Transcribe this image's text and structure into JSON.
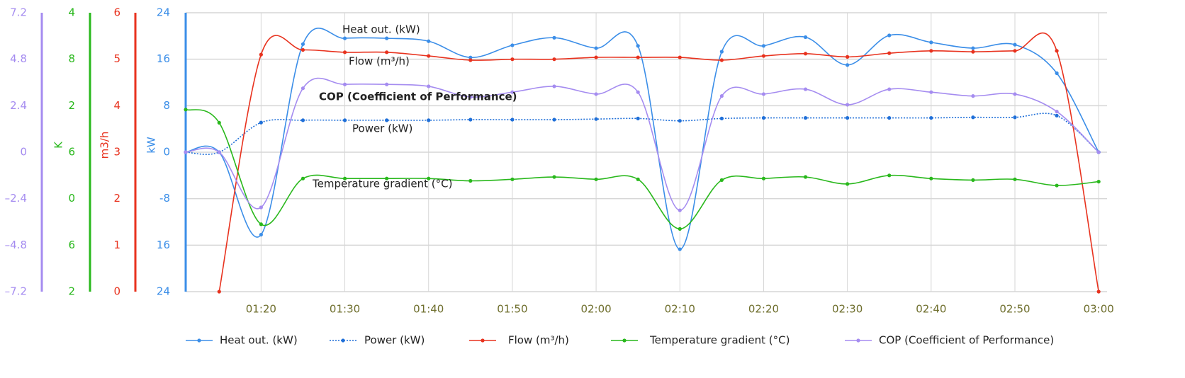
{
  "chart_data": {
    "type": "line",
    "ylabel": "kW",
    "y2label": "m3/h",
    "y3label": "K",
    "x": [
      "01:11",
      "01:15",
      "01:20",
      "01:25",
      "01:30",
      "01:35",
      "01:40",
      "01:45",
      "01:50",
      "01:55",
      "02:00",
      "02:05",
      "02:10",
      "02:15",
      "02:20",
      "02:25",
      "02:30",
      "02:35",
      "02:40",
      "02:45",
      "02:50",
      "02:55",
      "03:00"
    ],
    "xlim": [
      "01:11",
      "03:01"
    ],
    "xticks": [
      "01:20",
      "01:30",
      "01:40",
      "01:50",
      "02:00",
      "02:10",
      "02:20",
      "02:30",
      "02:40",
      "02:50",
      "03:00"
    ],
    "ylim": [
      -24,
      24
    ],
    "yticks": [
      24,
      16,
      8,
      0,
      -8,
      {
        "value": -16,
        "label": "16"
      },
      {
        "value": -24,
        "label": "24"
      }
    ],
    "y2lim": [
      0,
      6
    ],
    "y2ticks": [
      6,
      5,
      4,
      3,
      2,
      1,
      0
    ],
    "y3lim": [
      -12,
      24
    ],
    "y3ticks": [
      {
        "value": 24,
        "label": "4"
      },
      {
        "value": 18,
        "label": "8"
      },
      {
        "value": 12,
        "label": "2"
      },
      6,
      0,
      {
        "value": -6,
        "label": "6"
      },
      {
        "value": -12,
        "label": "2"
      }
    ],
    "y4lim": [
      -7.2,
      7.2
    ],
    "y4ticks": [
      7.2,
      4.8,
      2.4,
      0,
      {
        "value": -2.4,
        "label": "–2.4"
      },
      {
        "value": -4.8,
        "label": "–4.8"
      },
      {
        "value": -7.2,
        "label": "–7.2"
      }
    ],
    "grid": true,
    "legend": "bottom",
    "series": [
      {
        "name": "Heat out. (kW)",
        "color": "#3b8ee8",
        "axis": "y",
        "values": [
          0,
          0,
          -14.2,
          18.6,
          19.6,
          19.6,
          19.1,
          16.3,
          18.4,
          19.7,
          17.9,
          18.3,
          -16.7,
          17.3,
          18.3,
          19.8,
          15.0,
          20.1,
          18.9,
          17.9,
          18.5,
          13.6,
          0
        ]
      },
      {
        "name": "Power (kW)",
        "color": "#1f6fd8",
        "axis": "y",
        "line_style": "dotted",
        "values": [
          0,
          0,
          5.1,
          5.5,
          5.5,
          5.5,
          5.5,
          5.6,
          5.6,
          5.6,
          5.7,
          5.8,
          5.4,
          5.8,
          5.9,
          5.9,
          5.9,
          5.9,
          5.9,
          6.0,
          6.0,
          6.3,
          0
        ]
      },
      {
        "name": "Flow (m³/h)",
        "color": "#e8321e",
        "axis": "y2",
        "values": [
          null,
          0,
          5.1,
          5.2,
          5.15,
          5.15,
          5.07,
          4.98,
          5.0,
          5.0,
          5.04,
          5.04,
          5.04,
          4.98,
          5.07,
          5.12,
          5.05,
          5.13,
          5.18,
          5.16,
          5.18,
          5.18,
          0
        ]
      },
      {
        "name": "Temperature gradient (°C)",
        "color": "#29b81c",
        "axis": "y3",
        "values": [
          11.5,
          9.8,
          -3.3,
          2.6,
          2.6,
          2.6,
          2.6,
          2.3,
          2.5,
          2.8,
          2.5,
          2.5,
          -3.9,
          2.4,
          2.6,
          2.8,
          1.9,
          3.0,
          2.6,
          2.4,
          2.5,
          1.7,
          2.2
        ]
      },
      {
        "name": "COP (Coefficient of Performance)",
        "color": "#a58cf0",
        "axis": "y4",
        "values": [
          0,
          0,
          -2.85,
          3.3,
          3.5,
          3.5,
          3.4,
          2.85,
          3.1,
          3.4,
          3.0,
          3.1,
          -3.0,
          2.9,
          3.0,
          3.25,
          2.45,
          3.25,
          3.1,
          2.9,
          3.0,
          2.1,
          0
        ]
      }
    ]
  }
}
